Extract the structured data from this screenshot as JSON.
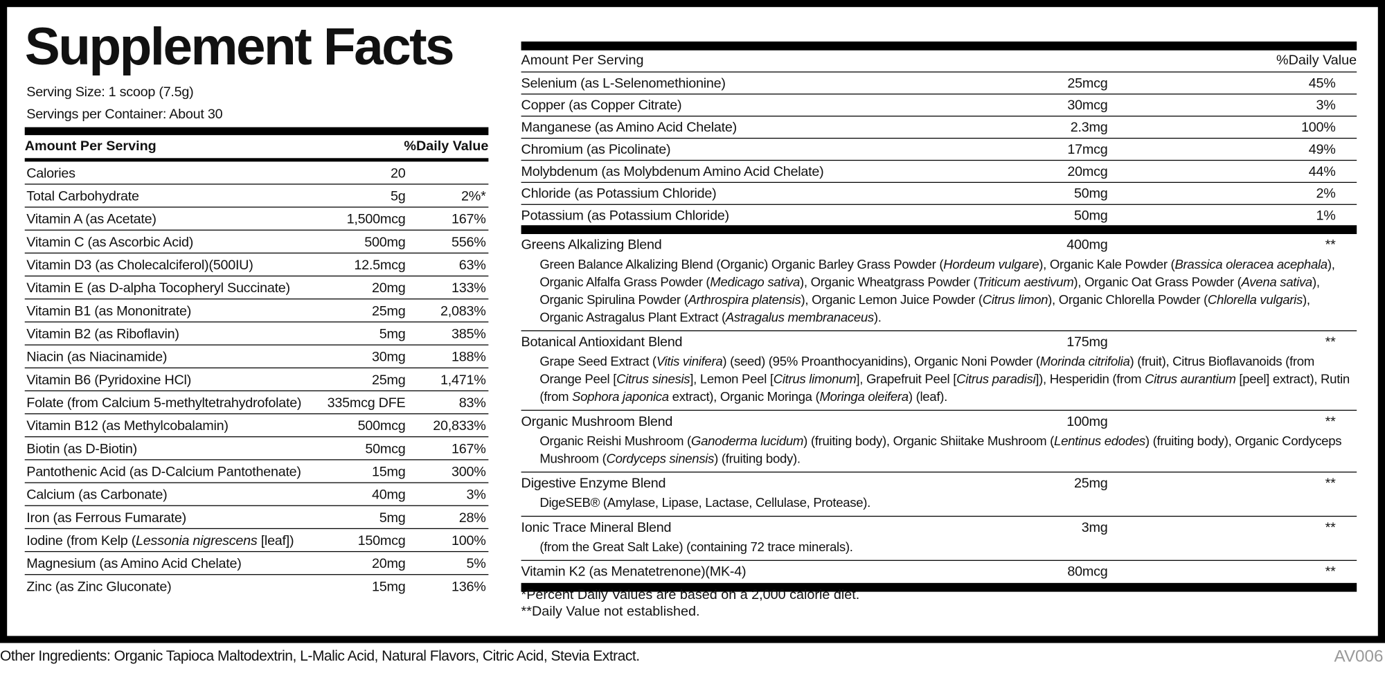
{
  "title": "Supplement Facts",
  "serving_size": "Serving Size: 1 scoop (7.5g)",
  "servings_per_container": "Servings per Container: About 30",
  "left_table": {
    "amount_header": "Amount Per Serving",
    "dv_header": "%Daily Value",
    "rows": [
      {
        "name": "Calories",
        "amount": "20"
      },
      {
        "name": "Total Carbohydrate",
        "amount": "5g",
        "dv": "2%*"
      },
      {
        "name": "Vitamin A (as Acetate)",
        "amount": "1,500mcg",
        "dv": "167%"
      },
      {
        "name": "Vitamin C (as Ascorbic Acid)",
        "amount": "500mg",
        "dv": "556%"
      },
      {
        "name": "Vitamin D3 (as Cholecalciferol)(500IU)",
        "amount": "12.5mcg",
        "dv": "63%"
      },
      {
        "name": "Vitamin E (as D-alpha Tocopheryl Succinate)",
        "amount": "20mg",
        "dv": "133%"
      },
      {
        "name": "Vitamin B1 (as Mononitrate)",
        "amount": "25mg",
        "dv": "2,083%"
      },
      {
        "name": "Vitamin B2 (as Riboflavin)",
        "amount": "5mg",
        "dv": "385%"
      },
      {
        "name": "Niacin (as Niacinamide)",
        "amount": "30mg",
        "dv": "188%"
      },
      {
        "name": "Vitamin B6 (Pyridoxine HCl)",
        "amount": "25mg",
        "dv": "1,471%"
      },
      {
        "name": "Folate (from Calcium 5-methyltetrahydrofolate)",
        "amount": "335mcg DFE",
        "dv": "83%"
      },
      {
        "name": "Vitamin B12 (as Methylcobalamin)",
        "amount": "500mcg",
        "dv": "20,833%"
      },
      {
        "name": "Biotin (as D-Biotin)",
        "amount": "50mcg",
        "dv": "167%"
      },
      {
        "name": "Pantothenic Acid (as D-Calcium Pantothenate)",
        "amount": "15mg",
        "dv": "300%"
      },
      {
        "name": "Calcium (as Carbonate)",
        "amount": "40mg",
        "dv": "3%"
      },
      {
        "name": "Iron (as Ferrous Fumarate)",
        "amount": "5mg",
        "dv": "28%"
      },
      {
        "name": [
          "Iodine (from Kelp (",
          {
            "em": "Lessonia nigrescens"
          },
          " [leaf])"
        ],
        "amount": "150mcg",
        "dv": "100%"
      },
      {
        "name": "Magnesium (as Amino Acid Chelate)",
        "amount": "20mg",
        "dv": "5%"
      },
      {
        "name": "Zinc (as Zinc Gluconate)",
        "amount": "15mg",
        "dv": "136%"
      }
    ]
  },
  "right_table": {
    "amount_header": "Amount Per Serving",
    "dv_header": "%Daily Value",
    "rows": [
      {
        "name": "Selenium (as L-Selenomethionine)",
        "amount": "25mcg",
        "dv": "45%"
      },
      {
        "name": "Copper (as Copper Citrate)",
        "amount": "30mcg",
        "dv": "3%"
      },
      {
        "name": "Manganese (as Amino Acid Chelate)",
        "amount": "2.3mg",
        "dv": "100%"
      },
      {
        "name": "Chromium (as Picolinate)",
        "amount": "17mcg",
        "dv": "49%"
      },
      {
        "name": "Molybdenum (as Molybdenum Amino Acid Chelate)",
        "amount": "20mcg",
        "dv": "44%"
      },
      {
        "name": "Chloride (as Potassium Chloride)",
        "amount": "50mg",
        "dv": "2%"
      },
      {
        "name": "Potassium (as Potassium Chloride)",
        "amount": "50mg",
        "dv": "1%"
      }
    ],
    "blends": [
      {
        "name": "Greens Alkalizing Blend",
        "amount": "400mg",
        "dv": "**",
        "description": [
          "Green Balance Alkalizing Blend (Organic) Organic Barley Grass Powder (",
          {
            "em": "Hordeum vulgare"
          },
          "), Organic Kale Powder (",
          {
            "em": "Brassica oleracea acephala"
          },
          "), Organic Alfalfa Grass Powder (",
          {
            "em": "Medicago sativa"
          },
          "), Organic Wheatgrass Powder (",
          {
            "em": "Triticum aestivum"
          },
          "), Organic Oat Grass Powder (",
          {
            "em": "Avena sativa"
          },
          "), Organic Spirulina Powder (",
          {
            "em": "Arthrospira platensis"
          },
          "), Organic Lemon Juice Powder (",
          {
            "em": "Citrus limon"
          },
          "), Organic Chlorella Powder (",
          {
            "em": "Chlorella vulgaris"
          },
          "), Organic Astragalus Plant Extract (",
          {
            "em": "Astragalus membranaceus"
          },
          ")."
        ]
      },
      {
        "name": "Botanical Antioxidant Blend",
        "amount": "175mg",
        "dv": "**",
        "description": [
          "Grape Seed Extract (",
          {
            "em": "Vitis vinifera"
          },
          ") (seed) (95% Proanthocyanidins), Organic Noni Powder (",
          {
            "em": "Morinda citrifolia"
          },
          ") (fruit), Citrus Bioflavanoids (from Orange Peel [",
          {
            "em": "Citrus sinesis"
          },
          "], Lemon Peel [",
          {
            "em": "Citrus limonum"
          },
          "], Grapefruit Peel [",
          {
            "em": "Citrus paradisi"
          },
          "]), Hesperidin (from ",
          {
            "em": "Citrus aurantium"
          },
          " [peel] extract), Rutin (from ",
          {
            "em": "Sophora japonica"
          },
          " extract), Organic Moringa (",
          {
            "em": "Moringa oleifera"
          },
          ") (leaf)."
        ]
      },
      {
        "name": "Organic Mushroom Blend",
        "amount": "100mg",
        "dv": "**",
        "description": [
          "Organic Reishi Mushroom (",
          {
            "em": "Ganoderma lucidum"
          },
          ") (fruiting body), Organic Shiitake Mushroom (",
          {
            "em": "Lentinus edodes"
          },
          ") (fruiting body), Organic Cordyceps Mushroom (",
          {
            "em": "Cordyceps sinensis"
          },
          ") (fruiting body)."
        ]
      },
      {
        "name": "Digestive Enzyme Blend",
        "amount": "25mg",
        "dv": "**",
        "description": "DigeSEB® (Amylase, Lipase, Lactase, Cellulase, Protease)."
      },
      {
        "name": "Ionic Trace Mineral Blend",
        "amount": "3mg",
        "dv": "**",
        "description": "(from the Great Salt Lake) (containing 72 trace minerals)."
      },
      {
        "name": "Vitamin K2 (as Menatetrenone)(MK-4)",
        "amount": "80mcg",
        "dv": "**"
      }
    ]
  },
  "footnotes": [
    "*Percent Daily Values are based on a 2,000 calorie diet.",
    "**Daily Value not established."
  ],
  "other_ingredients": "Other Ingredients: Organic Tapioca Maltodextrin, L-Malic Acid, Natural Flavors, Citric Acid, Stevia Extract.",
  "code": "AV006"
}
